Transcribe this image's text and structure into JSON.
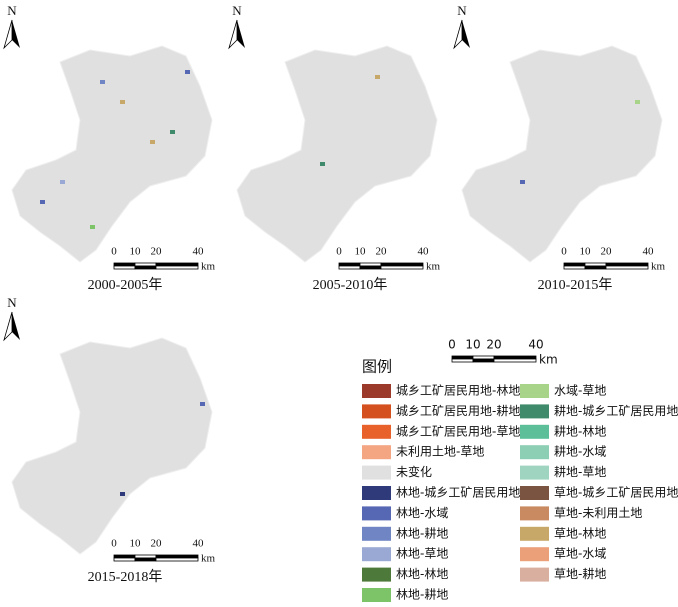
{
  "north": "N",
  "panels": [
    {
      "label": "2000-2005年"
    },
    {
      "label": "2005-2010年"
    },
    {
      "label": "2010-2015年"
    },
    {
      "label": "2015-2018年"
    }
  ],
  "scale_bar": {
    "ticks": [
      0,
      10,
      20,
      40
    ],
    "unit": "km"
  },
  "legend": {
    "title": "图例",
    "columns": [
      [
        {
          "label": "城乡工矿居民用地-林地",
          "color": "#9b3a2b"
        },
        {
          "label": "城乡工矿居民用地-耕地",
          "color": "#d4501e"
        },
        {
          "label": "城乡工矿居民用地-草地",
          "color": "#e8602a"
        },
        {
          "label": "未利用土地-草地",
          "color": "#f4a582"
        },
        {
          "label": "未变化",
          "color": "#e0e0e0"
        },
        {
          "label": "林地-城乡工矿居民用地",
          "color": "#2e3a7a"
        },
        {
          "label": "林地-水域",
          "color": "#5668b4"
        },
        {
          "label": "林地-耕地",
          "color": "#7086c4"
        },
        {
          "label": "林地-草地",
          "color": "#9aa9d4"
        },
        {
          "label": "林地-林地",
          "color": "#4d7a3a"
        },
        {
          "label": "林地-耕地",
          "color": "#7dc468"
        }
      ],
      [
        {
          "label": "水域-草地",
          "color": "#a8d48a"
        },
        {
          "label": "耕地-城乡工矿居民用地",
          "color": "#3e8a6a"
        },
        {
          "label": "耕地-林地",
          "color": "#5cbf9a"
        },
        {
          "label": "耕地-水域",
          "color": "#8ccfb4"
        },
        {
          "label": "耕地-草地",
          "color": "#9fd4c0"
        },
        {
          "label": "草地-城乡工矿居民用地",
          "color": "#7a5440"
        },
        {
          "label": "草地-未利用土地",
          "color": "#c98a62"
        },
        {
          "label": "草地-林地",
          "color": "#c8a868"
        },
        {
          "label": "草地-水域",
          "color": "#eba07a"
        },
        {
          "label": "草地-耕地",
          "color": "#d9b0a0"
        }
      ]
    ]
  }
}
